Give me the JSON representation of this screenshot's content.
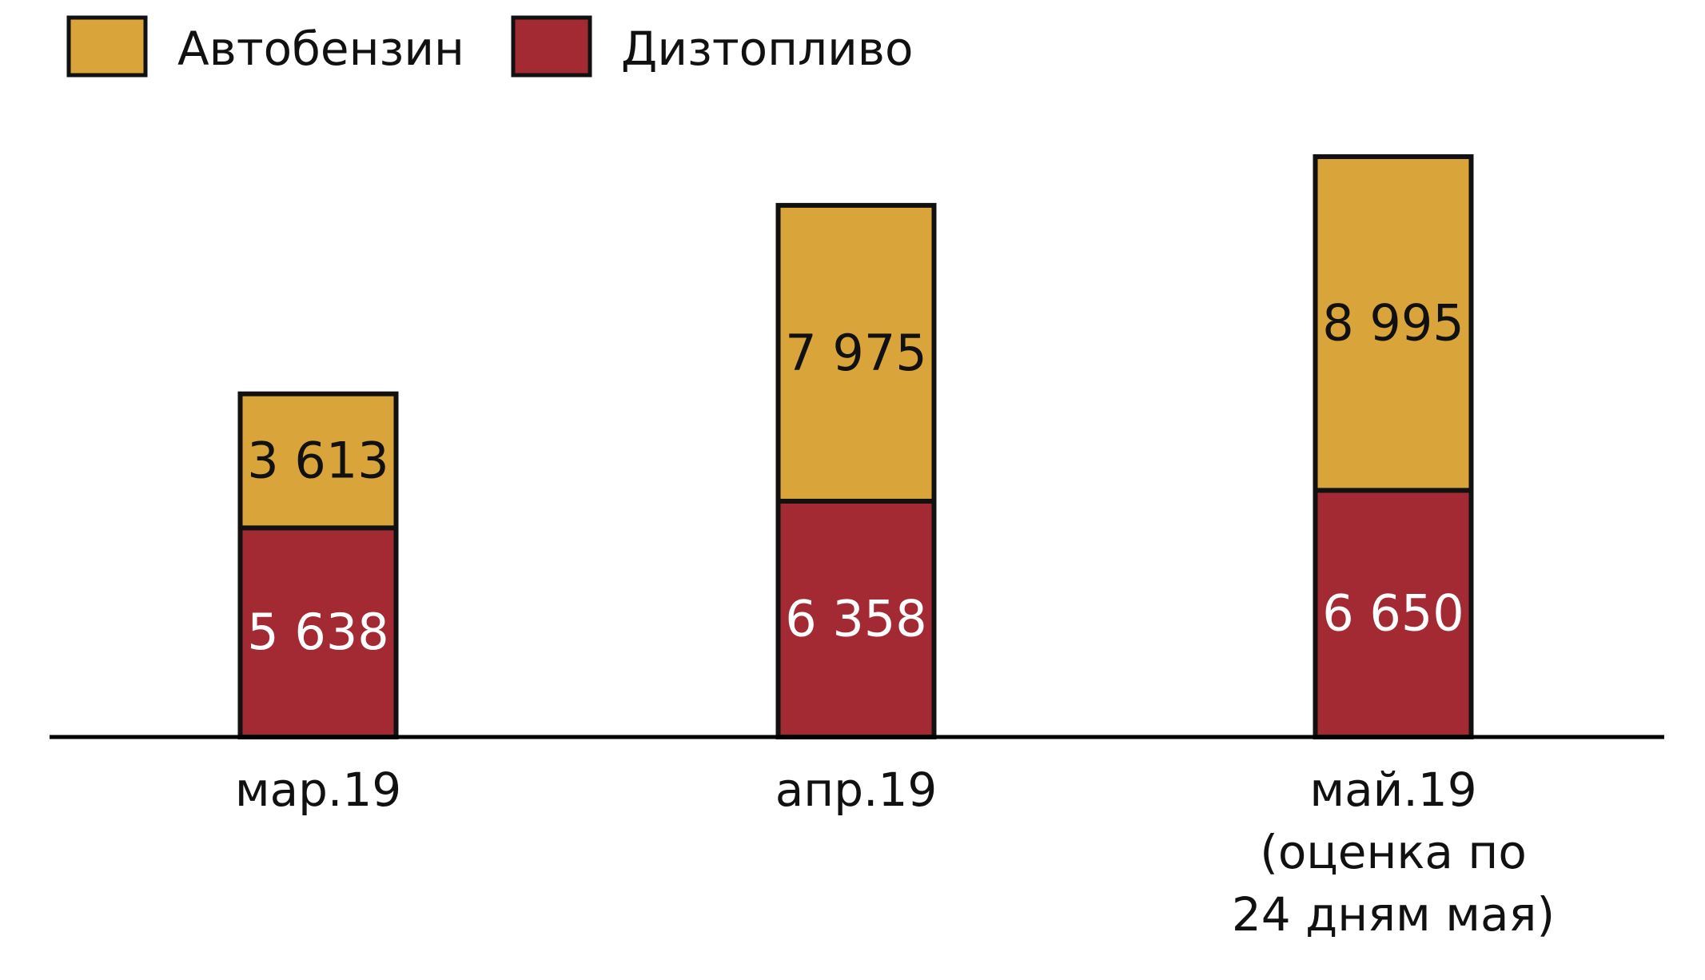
{
  "chart_data": {
    "type": "bar",
    "stacked": true,
    "categories": [
      [
        "мар.19"
      ],
      [
        "апр.19"
      ],
      [
        "май.19",
        "(оценка по",
        "24 дням мая)"
      ]
    ],
    "series": [
      {
        "name": "Дизтопливо",
        "values": [
          5638,
          6358,
          6650
        ],
        "labels": [
          "5 638",
          "6 358",
          "6 650"
        ]
      },
      {
        "name": "Автобензин",
        "values": [
          3613,
          7975,
          8995
        ],
        "labels": [
          "3 613",
          "7 975",
          "8 995"
        ]
      }
    ],
    "legend": {
      "placement": "top-left",
      "order": [
        1,
        0
      ]
    },
    "grid": false,
    "title": "",
    "xlabel": "",
    "ylabel": "",
    "ylim": [
      0,
      15645
    ]
  },
  "colors": {
    "Автобензин": "#D9A439",
    "Дизтопливо": "#A32A33",
    "outline": "#111111",
    "axis": "#000000",
    "label_on_gold": "#111111",
    "label_on_red": "#ffffff",
    "category_text": "#111111",
    "legend_text": "#111111"
  }
}
